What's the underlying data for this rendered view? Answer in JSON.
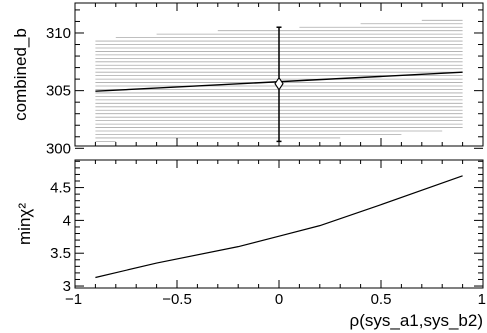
{
  "chart_data": [
    {
      "type": "line",
      "panel": "top",
      "ylabel": "combined_b",
      "xlabel": "",
      "xlim": [
        -1,
        1
      ],
      "ylim": [
        300.2,
        312.6
      ],
      "y_ticks": [
        300,
        305,
        310
      ],
      "y_tick_labels": [
        "300",
        "305",
        "310"
      ],
      "x_ticks": [
        -1,
        -0.5,
        0,
        0.5,
        1
      ],
      "x_tick_labels": [],
      "series": [
        {
          "x": [
            -0.9,
            0.9
          ],
          "values": [
            304.95,
            306.6
          ]
        }
      ],
      "band": {
        "x": [
          -0.9,
          -0.8,
          -0.7,
          -0.6,
          -0.5,
          -0.4,
          -0.3,
          -0.2,
          -0.1,
          0.0,
          0.1,
          0.2,
          0.3,
          0.4,
          0.5,
          0.6,
          0.7,
          0.8,
          0.9
        ],
        "lower": [
          300.4,
          300.5,
          300.6,
          300.7,
          300.8,
          300.8,
          300.9,
          300.9,
          300.9,
          300.8,
          300.8,
          300.8,
          300.9,
          301.0,
          301.1,
          301.2,
          301.4,
          301.5,
          301.6
        ],
        "upper": [
          309.6,
          309.8,
          309.9,
          310.0,
          310.1,
          310.2,
          310.3,
          310.4,
          310.5,
          310.5,
          310.6,
          310.7,
          310.8,
          310.9,
          311.0,
          311.1,
          311.3,
          311.4,
          311.5
        ]
      },
      "point": {
        "x": 0.0,
        "y": 305.6,
        "err_low": 300.6,
        "err_high": 310.5,
        "marker": "diamond"
      },
      "grid": false
    },
    {
      "type": "line",
      "panel": "bottom",
      "ylabel": "minχ²",
      "xlabel": "ρ(sys_a1,sys_b2)",
      "xlim": [
        -1,
        1
      ],
      "ylim": [
        2.97,
        4.92
      ],
      "y_ticks": [
        3,
        3.5,
        4,
        4.5
      ],
      "y_tick_labels": [
        "3",
        "3.5",
        "4",
        "4.5"
      ],
      "x_ticks": [
        -1,
        -0.5,
        0,
        0.5,
        1
      ],
      "x_tick_labels": [
        "−1",
        "−0.5",
        "0",
        "0.5",
        "1"
      ],
      "series": [
        {
          "x": [
            -0.9,
            -0.6,
            -0.2,
            0.0,
            0.2,
            0.5,
            0.9
          ],
          "values": [
            3.13,
            3.35,
            3.6,
            3.76,
            3.92,
            4.24,
            4.68
          ]
        }
      ],
      "grid": false
    }
  ],
  "colors": {
    "axis": "#000000",
    "band": "#aaaaaa",
    "line": "#000000"
  }
}
